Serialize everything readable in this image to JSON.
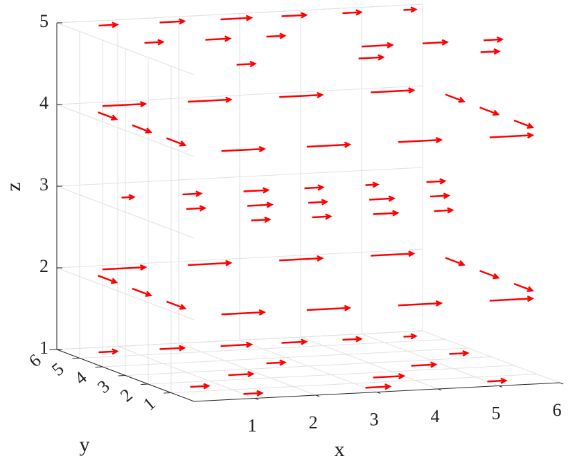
{
  "chart_data": {
    "type": "quiver3d",
    "xlabel": "x",
    "ylabel": "y",
    "zlabel": "z",
    "xlim": [
      0,
      6
    ],
    "ylim": [
      0,
      6
    ],
    "zlim": [
      1,
      5
    ],
    "xticks": [
      1,
      2,
      3,
      4,
      5,
      6
    ],
    "yticks": [
      1,
      2,
      3,
      4,
      5,
      6
    ],
    "zticks": [
      1,
      2,
      3,
      4,
      5
    ],
    "grid": true,
    "color": "#ff0000",
    "series": [
      {
        "x": [
          0.5,
          1.5,
          2.5,
          3.5,
          4.5,
          5.5,
          0.5,
          1.5,
          2.5,
          3.5,
          4.5,
          5.5,
          1.0,
          3.0,
          5.0
        ],
        "y": [
          5.5,
          5.5,
          5.5,
          5.5,
          5.5,
          5.5,
          1.5,
          2.5,
          3.5,
          1.5,
          2.5,
          3.5,
          0.5,
          0.5,
          0.5
        ],
        "z": [
          1,
          1,
          1,
          1,
          1,
          1,
          1,
          1,
          1,
          1,
          1,
          1,
          1,
          1,
          1
        ],
        "u": [
          0.3,
          0.4,
          0.5,
          0.4,
          0.3,
          0.2,
          0.3,
          0.4,
          0.3,
          0.5,
          0.4,
          0.3,
          0.3,
          0.4,
          0.3
        ],
        "v": [
          0,
          0,
          0,
          0,
          0,
          0,
          0,
          0,
          0,
          0,
          0,
          0,
          0,
          0,
          0
        ]
      },
      {
        "x": [
          0.6,
          2.0,
          3.5,
          5.0,
          0.6,
          2.0,
          3.5,
          5.0,
          0.3,
          0.3,
          0.3,
          6.0,
          6.0,
          6.0
        ],
        "y": [
          5.6,
          5.6,
          5.6,
          5.6,
          0.4,
          0.4,
          0.4,
          0.4,
          5.0,
          3.5,
          2.0,
          5.0,
          3.5,
          2.0
        ],
        "z": [
          2,
          2,
          2,
          2,
          2,
          2,
          2,
          2,
          2,
          2,
          2,
          2,
          2,
          2
        ],
        "u": [
          0.7,
          0.7,
          0.7,
          0.7,
          0.7,
          0.7,
          0.7,
          0.7,
          0,
          0,
          0,
          0,
          0,
          0
        ],
        "v": [
          0,
          0,
          0,
          0,
          0,
          0,
          0,
          0,
          -0.8,
          -0.8,
          -0.8,
          -0.8,
          -0.8,
          -0.8
        ]
      },
      {
        "x": [
          0.5,
          1.5,
          2.5,
          3.5,
          4.5,
          5.5,
          1.0,
          2.0,
          3.0,
          4.0,
          5.0,
          1.5,
          2.5,
          3.5,
          4.5
        ],
        "y": [
          4.5,
          4.5,
          4.5,
          4.5,
          4.5,
          4.5,
          3.0,
          3.0,
          3.0,
          3.0,
          3.0,
          1.5,
          1.5,
          1.5,
          1.5
        ],
        "z": [
          3,
          3,
          3,
          3,
          3,
          3,
          3,
          3,
          3,
          3,
          3,
          3,
          3,
          3,
          3
        ],
        "u": [
          0.2,
          0.3,
          0.4,
          0.3,
          0.2,
          0.3,
          0.3,
          0.4,
          0.3,
          0.4,
          0.3,
          0.3,
          0.3,
          0.4,
          0.3
        ],
        "v": [
          0,
          0,
          0,
          0,
          0,
          0,
          0,
          0,
          0,
          0,
          0,
          0,
          0,
          0,
          0
        ]
      },
      {
        "x": [
          0.6,
          2.0,
          3.5,
          5.0,
          0.6,
          2.0,
          3.5,
          5.0,
          0.3,
          0.3,
          0.3,
          6.0,
          6.0,
          6.0
        ],
        "y": [
          5.6,
          5.6,
          5.6,
          5.6,
          0.4,
          0.4,
          0.4,
          0.4,
          5.0,
          3.5,
          2.0,
          5.0,
          3.5,
          2.0
        ],
        "z": [
          4,
          4,
          4,
          4,
          4,
          4,
          4,
          4,
          4,
          4,
          4,
          4,
          4,
          4
        ],
        "u": [
          0.7,
          0.7,
          0.7,
          0.7,
          0.7,
          0.7,
          0.7,
          0.7,
          0,
          0,
          0,
          0,
          0,
          0
        ],
        "v": [
          0,
          0,
          0,
          0,
          0,
          0,
          0,
          0,
          -0.8,
          -0.8,
          -0.8,
          -0.8,
          -0.8,
          -0.8
        ]
      },
      {
        "x": [
          0.5,
          1.5,
          2.5,
          3.5,
          4.5,
          5.5,
          0.5,
          1.5,
          2.5,
          3.5,
          4.5,
          5.5,
          1.0,
          3.0,
          5.0
        ],
        "y": [
          5.5,
          5.5,
          5.5,
          5.5,
          5.5,
          5.5,
          3.5,
          3.5,
          3.5,
          2.0,
          2.0,
          2.0,
          0.8,
          0.8,
          0.8
        ],
        "z": [
          5,
          5,
          5,
          5,
          5,
          5,
          5,
          5,
          5,
          5,
          5,
          5,
          5,
          5,
          5
        ],
        "u": [
          0.3,
          0.4,
          0.5,
          0.4,
          0.3,
          0.2,
          0.3,
          0.4,
          0.3,
          0.5,
          0.4,
          0.3,
          0.3,
          0.4,
          0.3
        ],
        "v": [
          0,
          0,
          0,
          0,
          0,
          0,
          0,
          0,
          0,
          0,
          0,
          0,
          0,
          0,
          0
        ]
      }
    ]
  }
}
